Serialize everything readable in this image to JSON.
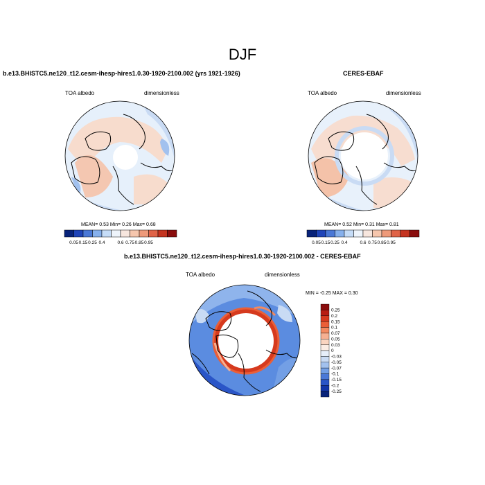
{
  "figure": {
    "title": "DJF",
    "panel1": {
      "title": "b.e13.BHISTC5.ne120_t12.cesm-ihesp-hires1.0.30-1920-2100.002 (yrs 1921-1926)",
      "left_label": "TOA albedo",
      "right_label": "dimensionless",
      "stats": {
        "mean_label": "MEAN=",
        "mean": "0.53",
        "min_label": "Min=",
        "min": "0.26",
        "max_label": "Max=",
        "max": "0.68"
      }
    },
    "panel2": {
      "title": "CERES-EBAF",
      "left_label": "TOA albedo",
      "right_label": "dimensionless",
      "stats": {
        "mean_label": "MEAN=",
        "mean": "0.52",
        "min_label": "Min=",
        "min": "0.31",
        "max_label": "Max=",
        "max": "0.81"
      }
    },
    "panel3": {
      "title": "b.e13.BHISTC5.ne120_t12.cesm-ihesp-hires1.0.30-1920-2100.002 - CERES-EBAF",
      "left_label": "TOA albedo",
      "right_label": "dimensionless",
      "stats": {
        "text": "MIN = -0.25 MAX =  0.30"
      }
    },
    "colorbar_horizontal": {
      "labels": [
        "0.05",
        "0.15",
        "0.25",
        "0.4",
        "0.6",
        "0.75",
        "0.85",
        "0.95"
      ],
      "colors": [
        "#08237a",
        "#1f44b8",
        "#4a78d6",
        "#86b0ec",
        "#c5dcf7",
        "#eef4fb",
        "#f7e6de",
        "#f6c6ad",
        "#ee9a7a",
        "#e06448",
        "#c43420",
        "#8a0d0d"
      ]
    },
    "colorbar_vertical": {
      "labels": [
        "0.25",
        "0.2",
        "0.15",
        "0.1",
        "0.07",
        "0.05",
        "0.03",
        "0",
        "-0.03",
        "-0.05",
        "-0.07",
        "-0.1",
        "-0.15",
        "-0.2",
        "-0.25"
      ],
      "colors": [
        "#8a0d0d",
        "#b71d12",
        "#d63a1e",
        "#ea5f38",
        "#f38a61",
        "#f6b092",
        "#fad4c0",
        "#fbece4",
        "#e6effa",
        "#c9dbf4",
        "#a2c1ee",
        "#739fe5",
        "#4a78d6",
        "#2a55c7",
        "#1235a8",
        "#08237a"
      ]
    }
  }
}
